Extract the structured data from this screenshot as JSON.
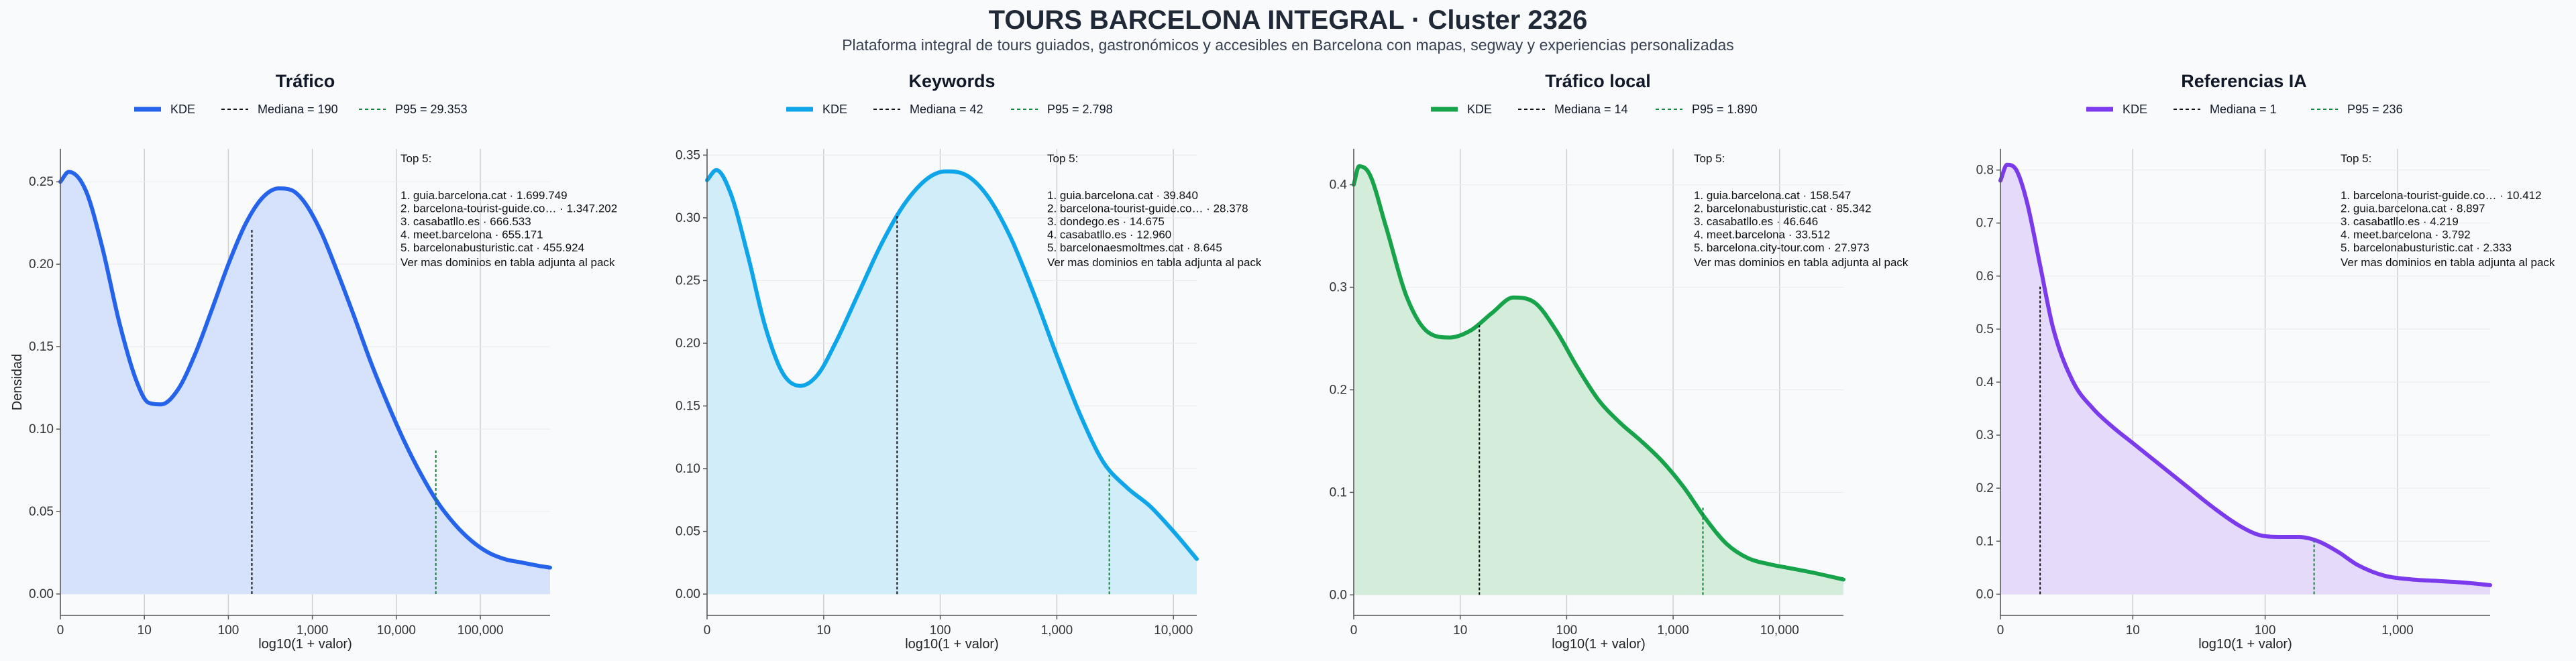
{
  "title": "TOURS BARCELONA INTEGRAL · Cluster 2326",
  "subtitle": "Plataforma integral de tours guiados, gastronómicos y accesibles en Barcelona con mapas, segway y experiencias personalizadas",
  "ylabel": "Densidad",
  "colors": {
    "median": "#111111",
    "p95": "#15803d",
    "grid": "#cfcfcf"
  },
  "chart_data": [
    {
      "type": "area",
      "title": "Tráfico",
      "color": "#2563eb",
      "fill": "#d6e2fb",
      "xlabel": "log10(1 + valor)",
      "xlim": [
        0,
        5.83
      ],
      "ylim": [
        -0.013,
        0.27
      ],
      "xticks": [
        0,
        1,
        2,
        3,
        4,
        5
      ],
      "xtick_labels": [
        "0",
        "10",
        "100",
        "1,000",
        "10,000",
        "100,000"
      ],
      "yticks": [
        0,
        0.05,
        0.1,
        0.15,
        0.2,
        0.25
      ],
      "ytick_labels": [
        "0.00",
        "0.05",
        "0.10",
        "0.15",
        "0.20",
        "0.25"
      ],
      "series": [
        {
          "name": "KDE",
          "x": [
            0,
            0.1,
            0.3,
            0.5,
            0.7,
            0.9,
            1.05,
            1.2,
            1.4,
            1.6,
            1.8,
            2.0,
            2.2,
            2.4,
            2.6,
            2.75,
            2.9,
            3.1,
            3.3,
            3.5,
            3.7,
            3.9,
            4.1,
            4.3,
            4.5,
            4.7,
            4.9,
            5.1,
            5.3,
            5.5,
            5.7,
            5.83
          ],
          "y": [
            0.25,
            0.256,
            0.245,
            0.21,
            0.165,
            0.13,
            0.116,
            0.115,
            0.124,
            0.145,
            0.172,
            0.2,
            0.224,
            0.24,
            0.246,
            0.245,
            0.238,
            0.22,
            0.195,
            0.168,
            0.14,
            0.115,
            0.092,
            0.072,
            0.055,
            0.042,
            0.032,
            0.025,
            0.021,
            0.019,
            0.017,
            0.016
          ]
        }
      ],
      "legend": [
        "KDE",
        "Mediana = 190",
        "P95 = 29.353"
      ],
      "median": {
        "x": 2.28,
        "y": 0.222
      },
      "p95": {
        "x": 4.47,
        "y": 0.088
      },
      "top5": {
        "heading": "Top 5:",
        "items": [
          "1. guia.barcelona.cat · 1.699.749",
          "2. barcelona-tourist-guide.co… · 1.347.202",
          "3. casabatllo.es · 666.533",
          "4. meet.barcelona · 655.171",
          "5. barcelonabusturistic.cat · 455.924"
        ],
        "note": "Ver mas dominios en tabla adjunta al pack"
      }
    },
    {
      "type": "area",
      "title": "Keywords",
      "color": "#0ea5e9",
      "fill": "#d1edfa",
      "xlabel": "log10(1 + valor)",
      "xlim": [
        0,
        4.2
      ],
      "ylim": [
        -0.017,
        0.355
      ],
      "xticks": [
        0,
        1,
        2,
        3,
        4
      ],
      "xtick_labels": [
        "0",
        "10",
        "100",
        "1,000",
        "10,000"
      ],
      "yticks": [
        0,
        0.05,
        0.1,
        0.15,
        0.2,
        0.25,
        0.3,
        0.35
      ],
      "ytick_labels": [
        "0.00",
        "0.05",
        "0.10",
        "0.15",
        "0.20",
        "0.25",
        "0.30",
        "0.35"
      ],
      "series": [
        {
          "name": "KDE",
          "x": [
            0,
            0.08,
            0.2,
            0.35,
            0.5,
            0.65,
            0.8,
            0.95,
            1.1,
            1.3,
            1.5,
            1.7,
            1.9,
            2.05,
            2.2,
            2.4,
            2.6,
            2.8,
            3.0,
            3.2,
            3.4,
            3.6,
            3.8,
            4.0,
            4.2
          ],
          "y": [
            0.33,
            0.338,
            0.32,
            0.27,
            0.213,
            0.176,
            0.166,
            0.175,
            0.2,
            0.24,
            0.28,
            0.312,
            0.332,
            0.337,
            0.335,
            0.318,
            0.285,
            0.24,
            0.19,
            0.143,
            0.105,
            0.085,
            0.07,
            0.05,
            0.028
          ]
        }
      ],
      "legend": [
        "KDE",
        "Mediana = 42",
        "P95 = 2.798"
      ],
      "median": {
        "x": 1.63,
        "y": 0.302
      },
      "p95": {
        "x": 3.45,
        "y": 0.095
      },
      "top5": {
        "heading": "Top 5:",
        "items": [
          "1. guia.barcelona.cat · 39.840",
          "2. barcelona-tourist-guide.co… · 28.378",
          "3. dondego.es · 14.675",
          "4. casabatllo.es · 12.960",
          "5. barcelonaesmoltmes.cat · 8.645"
        ],
        "note": "Ver mas dominios en tabla adjunta al pack"
      }
    },
    {
      "type": "area",
      "title": "Tráfico local",
      "color": "#16a34a",
      "fill": "#d4eddb",
      "xlabel": "log10(1 + valor)",
      "xlim": [
        0,
        4.6
      ],
      "ylim": [
        -0.02,
        0.435
      ],
      "xticks": [
        0,
        1,
        2,
        3,
        4
      ],
      "xtick_labels": [
        "0",
        "10",
        "100",
        "1,000",
        "10,000"
      ],
      "yticks": [
        0,
        0.1,
        0.2,
        0.3,
        0.4
      ],
      "ytick_labels": [
        "0.0",
        "0.1",
        "0.2",
        "0.3",
        "0.4"
      ],
      "series": [
        {
          "name": "KDE",
          "x": [
            0,
            0.05,
            0.15,
            0.3,
            0.5,
            0.7,
            0.9,
            1.1,
            1.3,
            1.5,
            1.7,
            1.9,
            2.1,
            2.3,
            2.5,
            2.7,
            2.9,
            3.1,
            3.3,
            3.5,
            3.7,
            3.9,
            4.1,
            4.3,
            4.6
          ],
          "y": [
            0.4,
            0.418,
            0.41,
            0.36,
            0.29,
            0.256,
            0.251,
            0.258,
            0.275,
            0.29,
            0.285,
            0.258,
            0.222,
            0.19,
            0.168,
            0.15,
            0.13,
            0.105,
            0.075,
            0.05,
            0.036,
            0.03,
            0.026,
            0.022,
            0.015
          ]
        }
      ],
      "legend": [
        "KDE",
        "Mediana = 14",
        "P95 = 1.890"
      ],
      "median": {
        "x": 1.18,
        "y": 0.263
      },
      "p95": {
        "x": 3.28,
        "y": 0.085
      },
      "top5": {
        "heading": "Top 5:",
        "items": [
          "1. guia.barcelona.cat · 158.547",
          "2. barcelonabusturistic.cat · 85.342",
          "3. casabatllo.es · 46.646",
          "4. meet.barcelona · 33.512",
          "5. barcelona.city-tour.com · 27.973"
        ],
        "note": "Ver mas dominios en tabla adjunta al pack"
      }
    },
    {
      "type": "area",
      "title": "Referencias IA",
      "color": "#7c3aed",
      "fill": "#e5dafa",
      "xlabel": "log10(1 + valor)",
      "xlim": [
        0,
        3.7
      ],
      "ylim": [
        -0.04,
        0.84
      ],
      "xticks": [
        0,
        1,
        2,
        3
      ],
      "xtick_labels": [
        "0",
        "10",
        "100",
        "1,000"
      ],
      "yticks": [
        0,
        0.1,
        0.2,
        0.3,
        0.4,
        0.5,
        0.6,
        0.7,
        0.8
      ],
      "ytick_labels": [
        "0.0",
        "0.1",
        "0.2",
        "0.3",
        "0.4",
        "0.5",
        "0.6",
        "0.7",
        "0.8"
      ],
      "series": [
        {
          "name": "KDE",
          "x": [
            0,
            0.05,
            0.12,
            0.2,
            0.3,
            0.4,
            0.55,
            0.7,
            0.85,
            1.0,
            1.2,
            1.4,
            1.6,
            1.8,
            1.95,
            2.1,
            2.25,
            2.4,
            2.55,
            2.7,
            2.9,
            3.1,
            3.3,
            3.5,
            3.7
          ],
          "y": [
            0.78,
            0.81,
            0.8,
            0.74,
            0.62,
            0.5,
            0.4,
            0.35,
            0.315,
            0.285,
            0.245,
            0.205,
            0.165,
            0.13,
            0.112,
            0.108,
            0.108,
            0.1,
            0.08,
            0.055,
            0.035,
            0.028,
            0.025,
            0.022,
            0.017
          ]
        }
      ],
      "legend": [
        "KDE",
        "Mediana = 1",
        "P95 = 236"
      ],
      "median": {
        "x": 0.3,
        "y": 0.58
      },
      "p95": {
        "x": 2.37,
        "y": 0.1
      },
      "top5": {
        "heading": "Top 5:",
        "items": [
          "1. barcelona-tourist-guide.co… · 10.412",
          "2. guia.barcelona.cat · 8.897",
          "3. casabatllo.es · 4.219",
          "4. meet.barcelona · 3.792",
          "5. barcelonabusturistic.cat · 2.333"
        ],
        "note": "Ver mas dominios en tabla adjunta al pack"
      }
    }
  ]
}
